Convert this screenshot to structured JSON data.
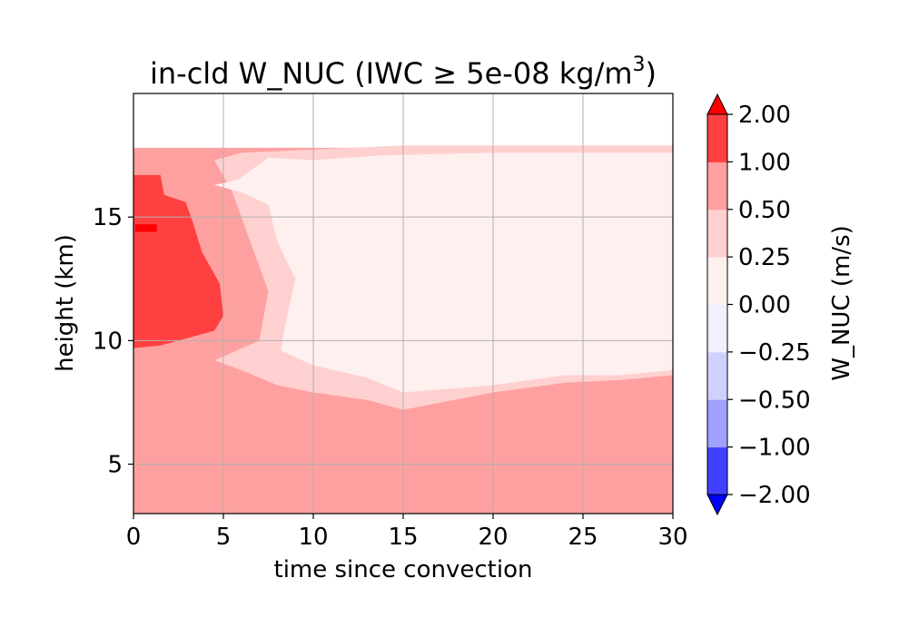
{
  "chart_data": {
    "type": "heatmap",
    "title_main": "in-cld W_NUC (IWC ",
    "title_sym": "≥",
    "title_rest": " 5e-08 kg/m",
    "title_sup": "3",
    "title_close": ")",
    "xlabel": "time since convection",
    "ylabel": "height (km)",
    "xlim": [
      0,
      30
    ],
    "ylim": [
      3,
      20
    ],
    "x_ticks": [
      0,
      5,
      10,
      15,
      20,
      25,
      30
    ],
    "x_tick_labels": [
      "0",
      "5",
      "10",
      "15",
      "20",
      "25",
      "30"
    ],
    "y_ticks": [
      5,
      10,
      15
    ],
    "y_tick_labels": [
      "5",
      "10",
      "15"
    ],
    "grid": true,
    "colorbar": {
      "label": "W_NUC (m/s)",
      "levels": [
        -2.0,
        -1.0,
        -0.5,
        -0.25,
        0.0,
        0.25,
        0.5,
        1.0,
        2.0
      ],
      "tick_labels": [
        "−2.00",
        "−1.00",
        "−0.50",
        "−0.25",
        "0.00",
        "0.25",
        "0.50",
        "1.00",
        "2.00"
      ],
      "band_colors": [
        "#4040ff",
        "#a0a0ff",
        "#d0d0ff",
        "#f0f0ff",
        "#fff0f0",
        "#ffd0d0",
        "#ffa0a0",
        "#ff4040"
      ],
      "extend_low_color": "#0000ff",
      "extend_high_color": "#ff0000"
    },
    "regions": [
      {
        "level": "0.50 to 1.00",
        "color": "#ffa0a0",
        "outline": [
          [
            0,
            3
          ],
          [
            30,
            3
          ],
          [
            30,
            17.8
          ],
          [
            0,
            17.8
          ]
        ]
      },
      {
        "level": "0.25 to 0.50",
        "color": "#ffd0d0",
        "outline": [
          [
            4.5,
            17.3
          ],
          [
            6,
            17.6
          ],
          [
            15,
            17.9
          ],
          [
            30,
            17.9
          ],
          [
            30,
            8.6
          ],
          [
            27,
            8.4
          ],
          [
            24,
            8.3
          ],
          [
            20,
            7.9
          ],
          [
            15,
            7.2
          ],
          [
            13,
            7.6
          ],
          [
            10,
            7.9
          ],
          [
            8,
            8.2
          ],
          [
            6,
            8.8
          ],
          [
            4.5,
            9.2
          ],
          [
            7,
            10
          ],
          [
            7.5,
            12
          ],
          [
            6.5,
            14
          ],
          [
            5.5,
            16
          ]
        ]
      },
      {
        "level": "0.00 to 0.25",
        "color": "#fff0f0",
        "outline": [
          [
            4.5,
            16.3
          ],
          [
            5.8,
            16.5
          ],
          [
            7.5,
            17.4
          ],
          [
            10,
            17.3
          ],
          [
            14,
            17.5
          ],
          [
            20,
            17.6
          ],
          [
            30,
            17.6
          ],
          [
            30,
            8.8
          ],
          [
            27,
            8.6
          ],
          [
            24,
            8.6
          ],
          [
            20,
            8.2
          ],
          [
            15,
            7.9
          ],
          [
            13,
            8.5
          ],
          [
            10,
            9
          ],
          [
            8.2,
            9.6
          ],
          [
            8.4,
            10.5
          ],
          [
            9,
            12.5
          ],
          [
            8,
            14
          ],
          [
            7.5,
            15.5
          ],
          [
            6,
            16
          ]
        ]
      },
      {
        "level": "1.00 to 2.00",
        "color": "#ff4040",
        "outline": [
          [
            0,
            9.7
          ],
          [
            1.5,
            9.8
          ],
          [
            3,
            10.1
          ],
          [
            4.5,
            10.4
          ],
          [
            5,
            11
          ],
          [
            4.8,
            12.3
          ],
          [
            3.8,
            13.6
          ],
          [
            3.3,
            14.8
          ],
          [
            2.9,
            15.6
          ],
          [
            1.7,
            15.9
          ],
          [
            1.5,
            16.7
          ],
          [
            0,
            16.7
          ]
        ]
      },
      {
        "level": "> 2.00",
        "color": "#ff0000",
        "outline": [
          [
            0.1,
            14.4
          ],
          [
            1.3,
            14.4
          ],
          [
            1.3,
            14.7
          ],
          [
            0.1,
            14.7
          ]
        ]
      }
    ]
  }
}
